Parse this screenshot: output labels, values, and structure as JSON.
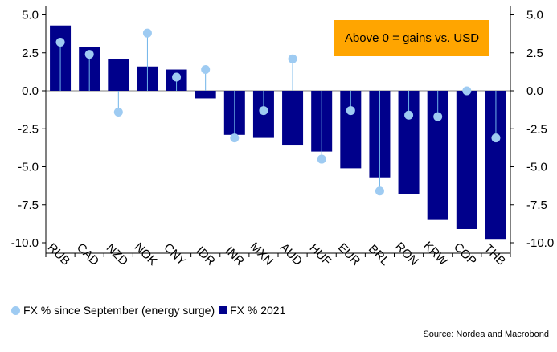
{
  "chart_data": {
    "type": "bar",
    "categories": [
      "RUB",
      "CAD",
      "NZD",
      "NOK",
      "CNY",
      "IDR",
      "INR",
      "MXN",
      "AUD",
      "HUF",
      "EUR",
      "BRL",
      "RON",
      "KRW",
      "COP",
      "THB"
    ],
    "series": [
      {
        "name": "FX % 2021",
        "kind": "bar",
        "color": "#00008b",
        "values": [
          4.3,
          2.9,
          2.1,
          1.6,
          1.4,
          -0.5,
          -2.9,
          -3.1,
          -3.6,
          -4.0,
          -5.1,
          -5.7,
          -6.8,
          -8.5,
          -9.1,
          -9.8
        ]
      },
      {
        "name": "FX % since September (energy surge)",
        "kind": "dot",
        "color": "#9ecbf2",
        "values": [
          3.2,
          2.4,
          -1.4,
          3.8,
          0.9,
          1.4,
          -3.1,
          -1.3,
          2.1,
          -4.5,
          -1.3,
          -6.6,
          -1.6,
          -1.7,
          0.0,
          -3.1
        ]
      }
    ],
    "ylim": [
      -10.5,
      5.5
    ],
    "yticks": [
      "5.0",
      "2.5",
      "0.0",
      "-2.5",
      "-5.0",
      "-7.5",
      "-10.0"
    ],
    "ytick_values": [
      5,
      2.5,
      0,
      -2.5,
      -5,
      -7.5,
      -10
    ],
    "annotation": "Above 0 = gains vs. USD",
    "legend_position": "bottom-left",
    "grid": false
  },
  "legend": {
    "dot_label": "FX % since September (energy surge)",
    "bar_label": "FX % 2021"
  },
  "source": "Source: Nordea and Macrobond"
}
